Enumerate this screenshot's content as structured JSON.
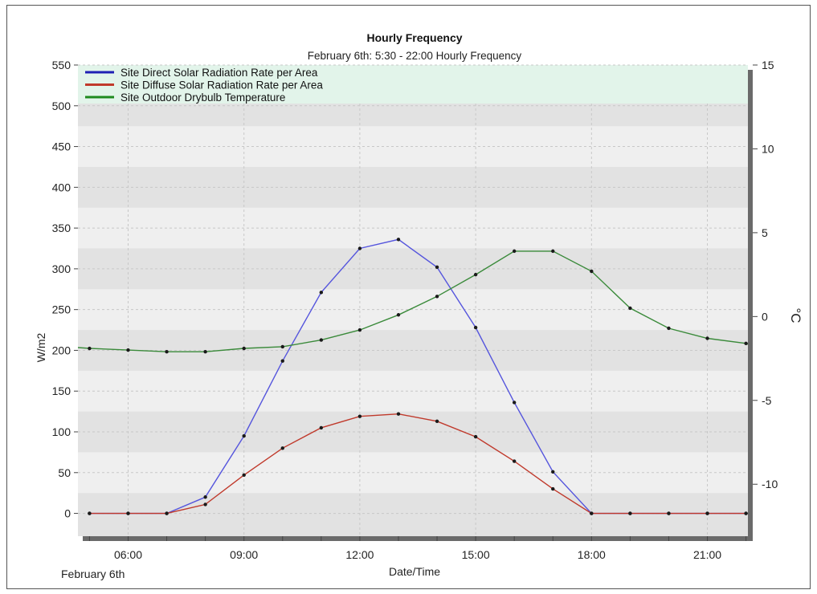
{
  "chart_data": {
    "type": "line",
    "title": "Hourly Frequency",
    "subtitle": "February 6th: 5:30 - 22:00 Hourly Frequency",
    "xlabel": "Date/Time",
    "date_label": "February 6th",
    "ylabel_left": "W/m2",
    "ylabel_right": "°C",
    "x_hours": [
      5,
      6,
      7,
      8,
      9,
      10,
      11,
      12,
      13,
      14,
      15,
      16,
      17,
      18,
      19,
      20,
      21,
      22
    ],
    "xlim_hours": [
      4.7,
      22.05
    ],
    "x_tick_hours": [
      6,
      9,
      12,
      15,
      18,
      21
    ],
    "x_tick_labels": [
      "06:00",
      "09:00",
      "12:00",
      "15:00",
      "18:00",
      "21:00"
    ],
    "ylim_left": [
      -28,
      550
    ],
    "y_ticks_left": [
      0,
      50,
      100,
      150,
      200,
      250,
      300,
      350,
      400,
      450,
      500,
      550
    ],
    "ylim_right": [
      -13.1,
      15
    ],
    "y_ticks_right": [
      -10,
      -5,
      0,
      5,
      10,
      15
    ],
    "grid": true,
    "legend_position": "top-left",
    "series": [
      {
        "name": "Site Direct Solar Radiation Rate per Area",
        "axis": "left",
        "color": "#1f1fb4",
        "line_color": "#5555dd",
        "values": [
          0,
          0,
          0,
          20,
          95,
          187,
          271,
          325,
          336,
          302,
          228,
          136,
          51,
          0,
          0,
          0,
          0,
          0
        ]
      },
      {
        "name": "Site Diffuse Solar Radiation Rate per Area",
        "axis": "left",
        "color": "#c0392b",
        "line_color": "#c0392b",
        "values": [
          0,
          0,
          0,
          11,
          47,
          80,
          105,
          119,
          122,
          113,
          94,
          64,
          30,
          0,
          0,
          0,
          0,
          0
        ]
      },
      {
        "name": "Site Outdoor Drybulb Temperature",
        "axis": "right",
        "color": "#1e8a1e",
        "line_color": "#3a8a3a",
        "values": [
          -1.9,
          -2.0,
          -2.1,
          -2.1,
          -1.9,
          -1.8,
          -1.4,
          -0.8,
          0.1,
          1.2,
          2.5,
          3.9,
          3.9,
          2.7,
          0.5,
          -0.7,
          -1.3,
          -1.6
        ]
      }
    ]
  },
  "colors": {
    "legend_bg": "#e2f4ea",
    "plot_band_light": "#efefef",
    "plot_band_dark": "#e2e2e2",
    "point_marker": "#1a1a1a"
  }
}
